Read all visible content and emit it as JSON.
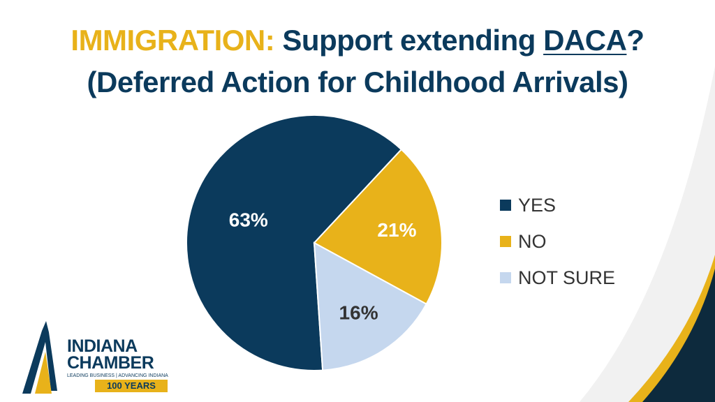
{
  "title": {
    "lead": "IMMIGRATION:",
    "text_before": "Support extending",
    "acronym": "DACA",
    "question_mark": "?",
    "line2": "(Deferred Action for Childhood Arrivals)"
  },
  "chart_data": {
    "type": "pie",
    "title": "IMMIGRATION: Support extending DACA? (Deferred Action for Childhood Arrivals)",
    "categories": [
      "YES",
      "NO",
      "NOT SURE"
    ],
    "values": [
      63,
      21,
      16
    ],
    "labels": [
      "63%",
      "21%",
      "16%"
    ],
    "colors": [
      "#0b3a5c",
      "#e8b21a",
      "#c5d7ee"
    ],
    "label_colors": [
      "#ffffff",
      "#ffffff",
      "#333333"
    ],
    "legend_position": "right"
  },
  "logo": {
    "line1": "INDIANA",
    "line2": "CHAMBER",
    "tagline": "LEADING BUSINESS | ADVANCING INDIANA",
    "badge": "100 YEARS"
  },
  "colors": {
    "navy": "#0b3a5c",
    "gold": "#e8b21a",
    "light_blue": "#c5d7ee"
  }
}
